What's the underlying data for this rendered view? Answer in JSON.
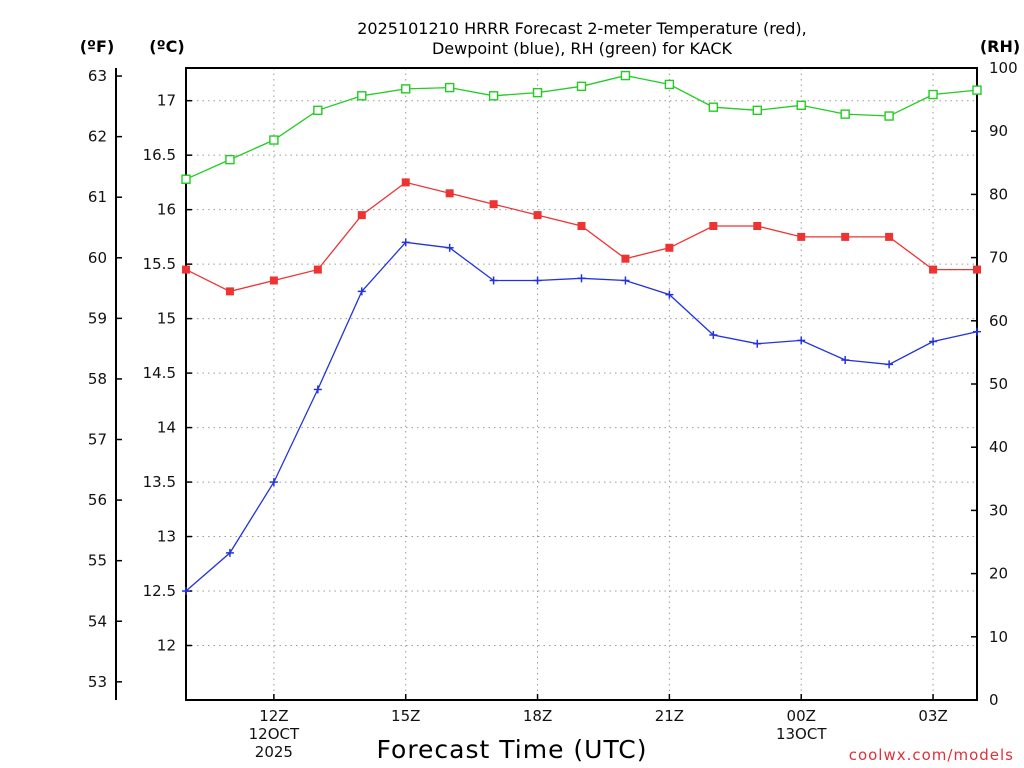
{
  "chart_data": {
    "type": "line",
    "title_lines": [
      "2025101210 HRRR Forecast 2-meter Temperature (red),",
      "Dewpoint (blue), RH (green) for KACK"
    ],
    "xlabel": "Forecast Time (UTC)",
    "credit": "coolwx.com/models",
    "axes": {
      "fahrenheit": {
        "label": "(ºF)",
        "range": [
          52.7,
          63.1
        ],
        "ticks": [
          53,
          54,
          55,
          56,
          57,
          58,
          59,
          60,
          61,
          62,
          63
        ]
      },
      "celsius": {
        "label": "(ºC)",
        "range": [
          11.5,
          17.3
        ],
        "ticks": [
          12,
          12.5,
          13,
          13.5,
          14,
          14.5,
          15,
          15.5,
          16,
          16.5,
          17
        ]
      },
      "rh": {
        "label": "(RH)",
        "range": [
          0,
          100
        ],
        "ticks": [
          0,
          10,
          20,
          30,
          40,
          50,
          60,
          70,
          80,
          90,
          100
        ]
      }
    },
    "x_hour_range": [
      10,
      28
    ],
    "x_ticks": [
      {
        "hour": 12,
        "lines": [
          "12Z",
          "12OCT",
          "2025"
        ]
      },
      {
        "hour": 15,
        "lines": [
          "15Z"
        ]
      },
      {
        "hour": 18,
        "lines": [
          "18Z"
        ]
      },
      {
        "hour": 21,
        "lines": [
          "21Z"
        ]
      },
      {
        "hour": 24,
        "lines": [
          "00Z",
          "13OCT"
        ]
      },
      {
        "hour": 27,
        "lines": [
          "03Z"
        ]
      }
    ],
    "hours": [
      10,
      11,
      12,
      13,
      14,
      15,
      16,
      17,
      18,
      19,
      20,
      21,
      22,
      23,
      24,
      25,
      26,
      27,
      28
    ],
    "series": [
      {
        "name": "2-meter Temperature",
        "unit": "C",
        "color": "#ee3333",
        "marker": "filled-square",
        "values": [
          15.45,
          15.25,
          15.35,
          15.45,
          15.95,
          16.25,
          16.15,
          16.05,
          15.95,
          15.85,
          15.55,
          15.65,
          15.85,
          15.85,
          15.75,
          15.75,
          15.75,
          15.45,
          15.45
        ]
      },
      {
        "name": "Dewpoint",
        "unit": "C",
        "color": "#2233dd",
        "marker": "plus",
        "values": [
          12.5,
          12.85,
          13.5,
          14.35,
          15.25,
          15.7,
          15.65,
          15.35,
          15.35,
          15.37,
          15.35,
          15.22,
          14.85,
          14.77,
          14.8,
          14.62,
          14.58,
          14.79,
          14.88
        ]
      },
      {
        "name": "Relative Humidity",
        "unit": "RH",
        "color": "#22cc22",
        "marker": "open-square",
        "values": [
          82.4,
          85.5,
          88.6,
          93.3,
          95.6,
          96.7,
          96.9,
          95.6,
          96.1,
          97.1,
          98.8,
          97.4,
          93.8,
          93.3,
          94.1,
          92.7,
          92.4,
          95.8,
          96.5
        ]
      }
    ],
    "grid": true
  }
}
